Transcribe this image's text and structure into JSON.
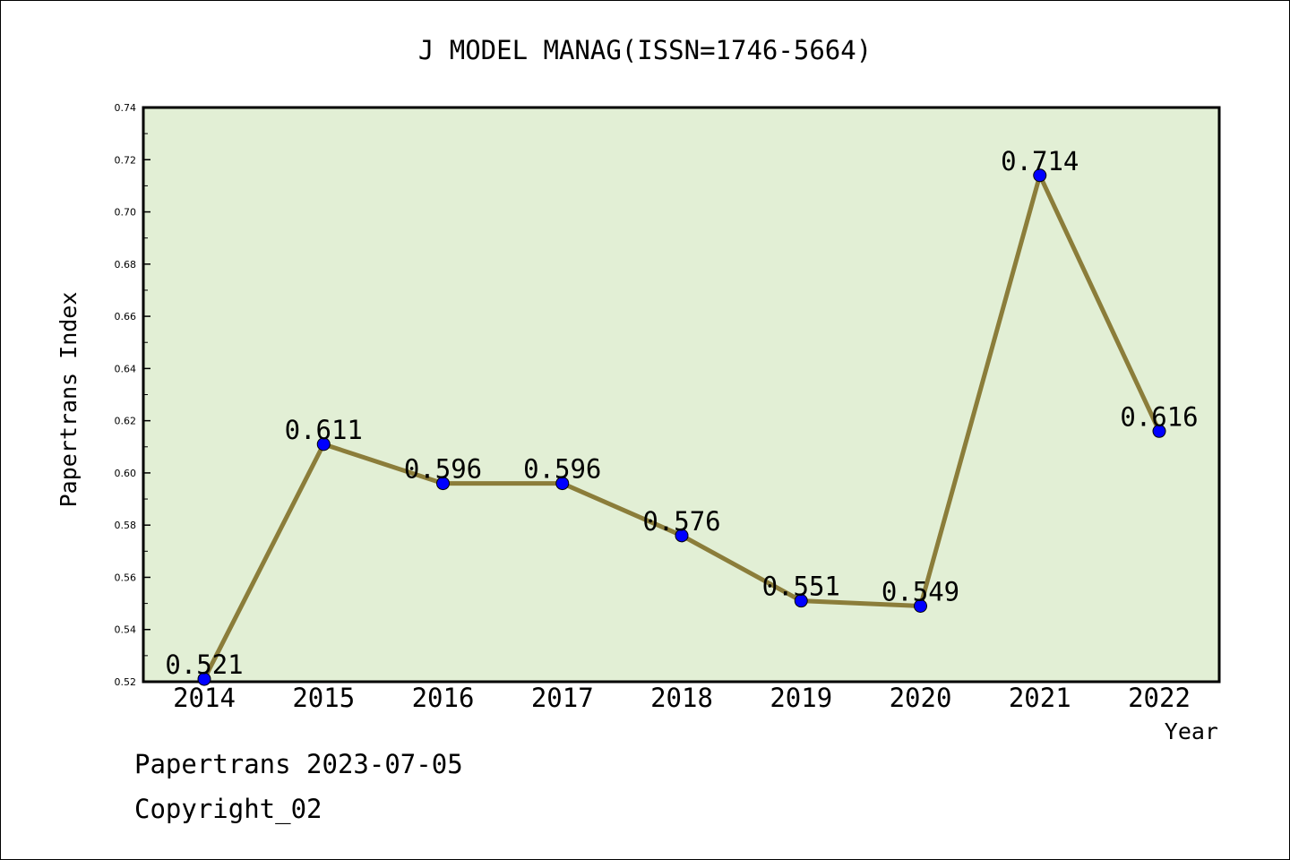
{
  "chart_data": {
    "type": "line",
    "title": "J MODEL MANAG(ISSN=1746-5664)",
    "xlabel": "Year",
    "ylabel": "Papertrans Index",
    "categories": [
      "2014",
      "2015",
      "2016",
      "2017",
      "2018",
      "2019",
      "2020",
      "2021",
      "2022"
    ],
    "values": [
      0.521,
      0.611,
      0.596,
      0.596,
      0.576,
      0.551,
      0.549,
      0.714,
      0.616
    ],
    "data_labels": [
      "0.521",
      "0.611",
      "0.596",
      "0.596",
      "0.576",
      "0.551",
      "0.549",
      "0.714",
      "0.616"
    ],
    "ylim": [
      0.52,
      0.74
    ],
    "yticks": [
      0.52,
      0.54,
      0.56,
      0.58,
      0.6,
      0.62,
      0.64,
      0.66,
      0.68,
      0.7,
      0.72,
      0.74
    ],
    "ytick_labels": [
      "0.52",
      "0.54",
      "0.56",
      "0.58",
      "0.60",
      "0.62",
      "0.64",
      "0.66",
      "0.68",
      "0.70",
      "0.72",
      "0.74"
    ],
    "grid": false,
    "legend": "none",
    "colors": {
      "line": "#8b7d3a",
      "marker": "#0000ff",
      "plot_bg": "#e2efd5"
    }
  },
  "footer": {
    "line1": "Papertrans 2023-07-05",
    "line2": "Copyright_02"
  }
}
